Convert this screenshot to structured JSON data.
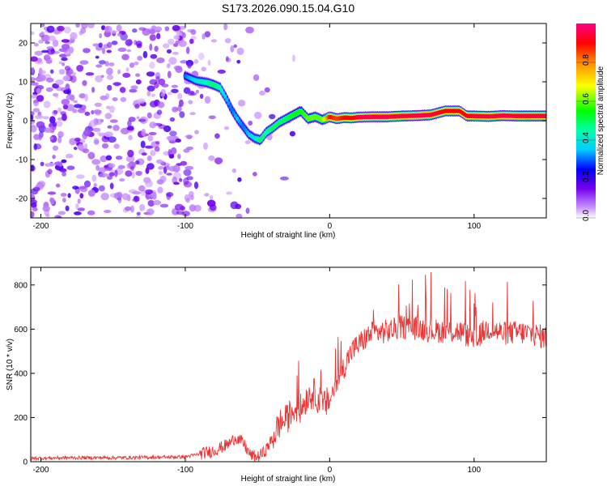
{
  "title": "S173.2026.090.15.04.G10",
  "chart_data": [
    {
      "type": "heatmap",
      "name": "spectrogram",
      "xlabel": "Height of straight line (km)",
      "ylabel": "Frequency (Hz)",
      "xlim": [
        -207,
        150
      ],
      "ylim": [
        -25,
        25
      ],
      "xticks": [
        -200,
        -100,
        0,
        100
      ],
      "yticks": [
        -20,
        -10,
        0,
        10,
        20
      ],
      "colorbar": {
        "label": "Normalized spectral amplitude",
        "range": [
          0,
          1
        ],
        "ticks": [
          0.0,
          0.2,
          0.4,
          0.6,
          0.8
        ],
        "colors": [
          "#ffffff",
          "#cc99ff",
          "#7700ee",
          "#0000ff",
          "#00ffff",
          "#00ff00",
          "#ffff00",
          "#ff8800",
          "#ff0000",
          "#ff0088"
        ]
      },
      "ridge": {
        "x": [
          -100,
          -92,
          -85,
          -80,
          -76,
          -72,
          -68,
          -64,
          -60,
          -56,
          -52,
          -48,
          -44,
          -40,
          -35,
          -30,
          -25,
          -20,
          -15,
          -10,
          -5,
          0,
          5,
          10,
          15,
          20,
          30,
          40,
          50,
          60,
          70,
          80,
          90,
          95,
          100,
          110,
          120,
          130,
          150
        ],
        "y": [
          11.5,
          10.2,
          9.8,
          9.2,
          8.5,
          6.0,
          3.0,
          0.5,
          -1.5,
          -3.5,
          -4.5,
          -5.0,
          -3.0,
          -2.0,
          -0.5,
          0.5,
          1.5,
          2.5,
          0.5,
          1.0,
          0.2,
          1.0,
          0.5,
          0.8,
          0.7,
          0.9,
          1.0,
          1.0,
          1.2,
          1.3,
          1.5,
          2.5,
          2.5,
          1.2,
          1.2,
          1.1,
          1.3,
          1.2,
          1.2
        ],
        "amplitude": [
          0.3,
          0.4,
          0.45,
          0.5,
          0.45,
          0.35,
          0.3,
          0.35,
          0.3,
          0.35,
          0.4,
          0.5,
          0.45,
          0.5,
          0.5,
          0.5,
          0.55,
          0.55,
          0.6,
          0.6,
          0.6,
          0.9,
          0.85,
          0.9,
          0.9,
          0.95,
          0.95,
          0.95,
          0.95,
          0.95,
          0.95,
          0.9,
          0.9,
          0.9,
          0.95,
          0.95,
          0.95,
          0.95,
          0.95
        ]
      },
      "noise_region_x": [
        -207,
        -60
      ]
    },
    {
      "type": "line",
      "name": "snr",
      "xlabel": "Height of straight line (km)",
      "ylabel": "SNR (10 * v/v)",
      "xlim": [
        -207,
        150
      ],
      "ylim": [
        0,
        880
      ],
      "xticks": [
        -200,
        -100,
        0,
        100
      ],
      "yticks": [
        0,
        200,
        400,
        600,
        800
      ],
      "color": "#ee3333",
      "x": [
        -207,
        -180,
        -150,
        -120,
        -100,
        -90,
        -80,
        -70,
        -65,
        -60,
        -55,
        -50,
        -45,
        -40,
        -35,
        -30,
        -25,
        -20,
        -15,
        -10,
        -5,
        0,
        5,
        10,
        15,
        20,
        25,
        30,
        40,
        50,
        60,
        70,
        80,
        90,
        100,
        110,
        120,
        130,
        140,
        150
      ],
      "y": [
        15,
        18,
        18,
        20,
        22,
        35,
        50,
        80,
        110,
        85,
        30,
        20,
        45,
        100,
        170,
        190,
        240,
        240,
        300,
        310,
        250,
        280,
        360,
        430,
        500,
        530,
        560,
        585,
        590,
        610,
        605,
        595,
        590,
        590,
        555,
        605,
        580,
        585,
        580,
        560
      ]
    }
  ]
}
